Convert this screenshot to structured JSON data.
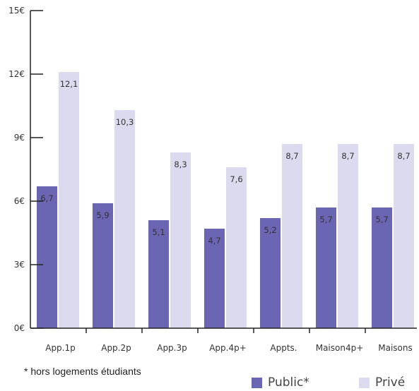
{
  "chart_data": {
    "type": "bar",
    "categories": [
      "App.1p",
      "App.2p",
      "App.3p",
      "App.4p+",
      "Appts.",
      "Maison4p+",
      "Maisons"
    ],
    "series": [
      {
        "name": "Public*",
        "values": [
          6.7,
          5.9,
          5.1,
          4.7,
          5.2,
          5.7,
          5.7
        ],
        "labels": [
          "6,7",
          "5,9",
          "5,1",
          "4,7",
          "5,2",
          "5,7",
          "5,7"
        ],
        "color": "#6a66b4"
      },
      {
        "name": "Privé",
        "values": [
          12.1,
          10.3,
          8.3,
          7.6,
          8.7,
          8.7,
          8.7
        ],
        "labels": [
          "12,1",
          "10,3",
          "8,3",
          "7,6",
          "8,7",
          "8,7",
          "8,7"
        ],
        "color": "#dcdaee"
      }
    ],
    "yticks": [
      0,
      3,
      6,
      9,
      12,
      15
    ],
    "ytick_labels": [
      "0€",
      "3€",
      "6€",
      "9€",
      "12€",
      "15€"
    ],
    "ylim": [
      0,
      15
    ],
    "title": "",
    "xlabel": "",
    "ylabel": "",
    "grid": false,
    "legend_position": "bottom-right"
  },
  "footnote": "* hors logements étudiants"
}
